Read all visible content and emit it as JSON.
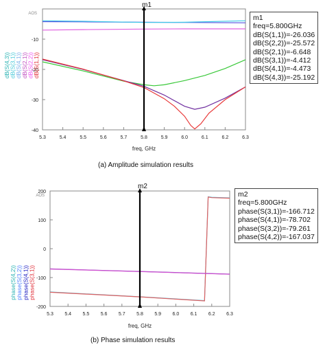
{
  "chart_data": [
    {
      "type": "line",
      "id": "amplitude",
      "caption": "(a) Amplitude simulation results",
      "xlabel": "freq, GHz",
      "xlim": [
        5.3,
        6.3
      ],
      "ylim": [
        -40,
        0
      ],
      "x_ticks": [
        "5.3",
        "5.4",
        "5.5",
        "5.6",
        "5.7",
        "5.8",
        "5.9",
        "6.0",
        "6.1",
        "6.2",
        "6.3"
      ],
      "y_ticks": [
        "-10",
        "-20",
        "-30",
        "-40"
      ],
      "y_top_label": "AOS",
      "legend_labels": [
        "dB(S(4,3))",
        "dB(S(3,1))",
        "dB(S(4,1))",
        "dB(S(2,1))",
        "dB(S(2,2))",
        "dB(S(1,1))"
      ],
      "legend_colors": [
        "#2ab3b3",
        "#48c8d8",
        "#7ab0e8",
        "#c050c0",
        "#ee55ee",
        "#e0303a"
      ],
      "series": [
        {
          "name": "dB(S(4,3))",
          "color": "#38c838",
          "x": [
            5.3,
            5.5,
            5.7,
            5.8,
            5.85,
            5.9,
            6.0,
            6.1,
            6.2,
            6.3
          ],
          "y": [
            -17.5,
            -20.5,
            -23.9,
            -25.1,
            -25.4,
            -25.1,
            -23.7,
            -22.0,
            -19.7,
            -16.8
          ]
        },
        {
          "name": "dB(S(3,1))",
          "color": "#5050e0",
          "x": [
            5.3,
            5.5,
            5.8,
            6.0,
            6.3
          ],
          "y": [
            -4.2,
            -4.28,
            -4.41,
            -4.48,
            -4.6
          ]
        },
        {
          "name": "dB(S(4,1))",
          "color": "#40c8e8",
          "x": [
            5.3,
            5.5,
            5.8,
            6.0,
            6.3
          ],
          "y": [
            -3.9,
            -4.1,
            -4.47,
            -4.4,
            -3.9
          ]
        },
        {
          "name": "dB(S(2,1))",
          "color": "#e060e0",
          "x": [
            5.3,
            5.5,
            5.8,
            6.0,
            6.3
          ],
          "y": [
            -7.0,
            -6.85,
            -6.65,
            -6.6,
            -6.6
          ]
        },
        {
          "name": "dB(S(2,2))",
          "color": "#7030a0",
          "x": [
            5.3,
            5.5,
            5.7,
            5.8,
            5.9,
            6.0,
            6.05,
            6.1,
            6.2,
            6.3
          ],
          "y": [
            -16.8,
            -20.0,
            -23.7,
            -25.6,
            -28.5,
            -32.2,
            -33.2,
            -32.5,
            -29.5,
            -25.8
          ]
        },
        {
          "name": "dB(S(1,1))",
          "color": "#e83838",
          "x": [
            5.3,
            5.5,
            5.7,
            5.8,
            5.9,
            5.95,
            6.0,
            6.03,
            6.05,
            6.08,
            6.12,
            6.2,
            6.3
          ],
          "y": [
            -16.6,
            -19.9,
            -23.8,
            -26.0,
            -29.7,
            -32.2,
            -35.5,
            -38.5,
            -39.7,
            -38.0,
            -34.5,
            -30.0,
            -25.8
          ]
        }
      ],
      "marker": {
        "name": "m1",
        "x": 5.8,
        "readout": [
          "m1",
          "freq=5.800GHz",
          "dB(S(1,1))=-26.036",
          "dB(S(2,2))=-25.572",
          "dB(S(2,1))=-6.648",
          "dB(S(3,1))=-4.412",
          "dB(S(4,1))=-4.473",
          "dB(S(4,3))=-25.192"
        ]
      }
    },
    {
      "type": "line",
      "id": "phase",
      "caption": "(b) Phase simulation results",
      "xlabel": "freq, GHz",
      "xlim": [
        5.3,
        6.3
      ],
      "ylim": [
        -200,
        200
      ],
      "x_ticks": [
        "5.3",
        "5.4",
        "5.5",
        "5.6",
        "5.7",
        "5.8",
        "5.9",
        "6.0",
        "6.1",
        "6.2",
        "6.3"
      ],
      "y_ticks": [
        "200",
        "100",
        "0",
        "-100",
        "-200"
      ],
      "y_top_label": "AOS",
      "legend_labels": [
        "phase(S(4,2))",
        "phase(S(3,2))",
        "phase(S(4,1))",
        "phase(S(3,1))"
      ],
      "legend_colors": [
        "#2ab3b3",
        "#5080ff",
        "#2020c0",
        "#e0303a"
      ],
      "series": [
        {
          "name": "phase(S(3,1))",
          "color": "#40b8d8",
          "x": [
            5.3,
            5.8,
            6.16,
            6.18,
            6.2,
            6.3
          ],
          "y": [
            -150,
            -166.7,
            -180,
            180,
            178,
            176
          ]
        },
        {
          "name": "phase(S(4,2))",
          "color": "#e06060",
          "x": [
            5.3,
            5.8,
            6.16,
            6.18,
            6.2,
            6.3
          ],
          "y": [
            -151,
            -167.0,
            -181,
            179,
            177,
            175
          ]
        },
        {
          "name": "phase(S(4,1))",
          "color": "#8040c0",
          "x": [
            5.3,
            5.8,
            6.3
          ],
          "y": [
            -70,
            -78.7,
            -88
          ]
        },
        {
          "name": "phase(S(3,2))",
          "color": "#d050d0",
          "x": [
            5.3,
            5.8,
            6.3
          ],
          "y": [
            -70.5,
            -79.3,
            -88.5
          ]
        }
      ],
      "marker": {
        "name": "m2",
        "x": 5.8,
        "readout": [
          "m2",
          "freq=5.800GHz",
          "phase(S(3,1))=-166.712",
          "phase(S(4,1))=-78.702",
          "phase(S(3,2))=-79.261",
          "phase(S(4,2))=-167.037"
        ]
      }
    }
  ]
}
